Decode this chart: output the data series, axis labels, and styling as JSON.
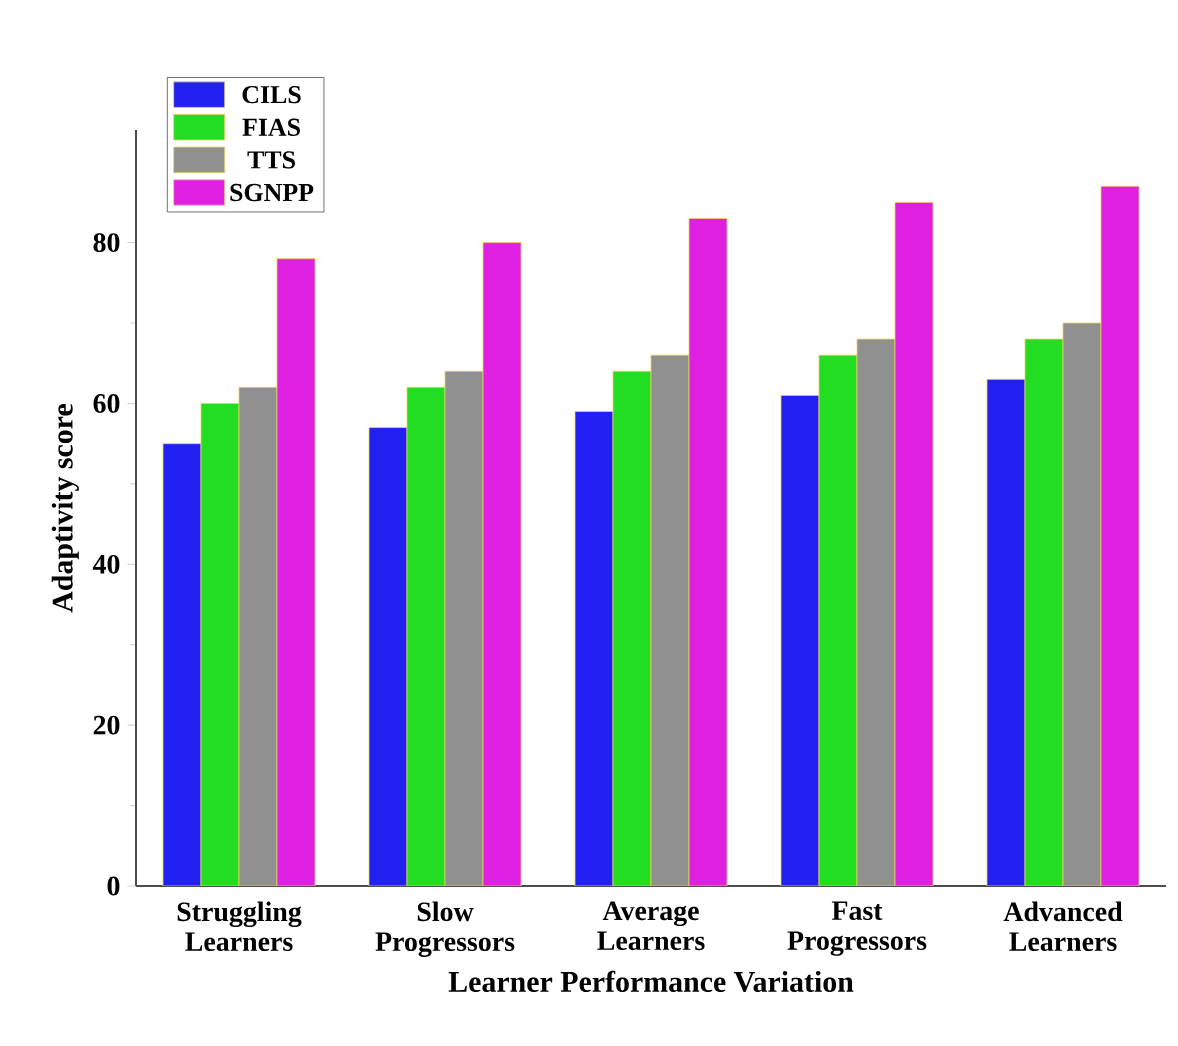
{
  "chart_data": {
    "type": "bar",
    "xlabel": "Learner Performance Variation",
    "ylabel": "Adaptivity score",
    "categories": [
      "Struggling Learners",
      "Slow Progressors",
      "Average Learners",
      "Fast Progressors",
      "Advanced Learners"
    ],
    "series": [
      {
        "name": "CILS",
        "color": "#2020f0",
        "values": [
          55,
          57,
          59,
          61,
          63
        ]
      },
      {
        "name": "FIAS",
        "color": "#22dd22",
        "values": [
          60,
          62,
          64,
          66,
          68
        ]
      },
      {
        "name": "TTS",
        "color": "#909090",
        "values": [
          62,
          64,
          66,
          68,
          70
        ]
      },
      {
        "name": "SGNPP",
        "color": "#e020e0",
        "values": [
          78,
          80,
          83,
          85,
          87
        ]
      }
    ],
    "ylim": [
      0,
      94
    ],
    "yticks": [
      0,
      20,
      40,
      60,
      80
    ],
    "grid": false,
    "legend": "top left"
  }
}
